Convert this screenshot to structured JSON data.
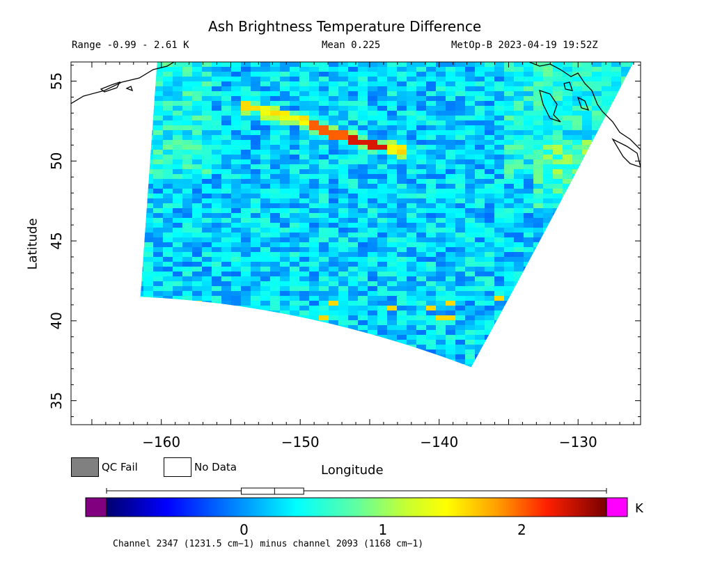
{
  "chart_data": {
    "type": "heatmap",
    "title": "Ash Brightness Temperature Difference",
    "range_text": "Range -0.99 - 2.61 K",
    "mean_text": "Mean 0.225",
    "satellite_text": "MetOp-B 2023-04-19 19:52Z",
    "xlabel": "Longitude",
    "ylabel": "Latitude",
    "xlim": [
      -166.5,
      -125.5
    ],
    "ylim": [
      33.5,
      56.2
    ],
    "x_ticks": [
      -160,
      -150,
      -140,
      -130
    ],
    "x_tick_labels": [
      "−160",
      "−150",
      "−140",
      "−130"
    ],
    "y_ticks": [
      35,
      40,
      45,
      50,
      55
    ],
    "y_tick_labels": [
      "35",
      "40",
      "45",
      "50",
      "55"
    ],
    "grid": false,
    "swath_corners": {
      "top_left": [
        -160.3,
        56.2
      ],
      "bottom_left": [
        -161.5,
        41.5
      ],
      "bottom_right": [
        -137.7,
        37.1
      ],
      "top_right": [
        -126.0,
        56.2
      ]
    },
    "ash_plume": {
      "description_values": [
        1.3,
        2.0,
        2.4
      ],
      "points": [
        [
          -153.8,
          53.4
        ],
        [
          -150.5,
          52.7
        ],
        [
          -147.5,
          51.7
        ],
        [
          -145.0,
          51.0
        ],
        [
          -142.5,
          50.6
        ]
      ]
    },
    "colorbar": {
      "min": -0.99,
      "max": 2.61,
      "ticks": [
        0,
        1,
        2
      ],
      "tick_labels": [
        "0",
        "1",
        "2"
      ],
      "unit": "K",
      "underflow_color": "#800080",
      "overflow_color": "#ff00ff",
      "box_plot": {
        "q1": -0.02,
        "median": 0.22,
        "q3": 0.43
      }
    },
    "channel_text": "Channel 2347 (1231.5 cm−1) minus channel 2093 (1168 cm−1)"
  },
  "legend": {
    "qc_fail_label": "QC Fail",
    "qc_fail_color": "#808080",
    "no_data_label": "No Data",
    "no_data_color": "#ffffff"
  }
}
